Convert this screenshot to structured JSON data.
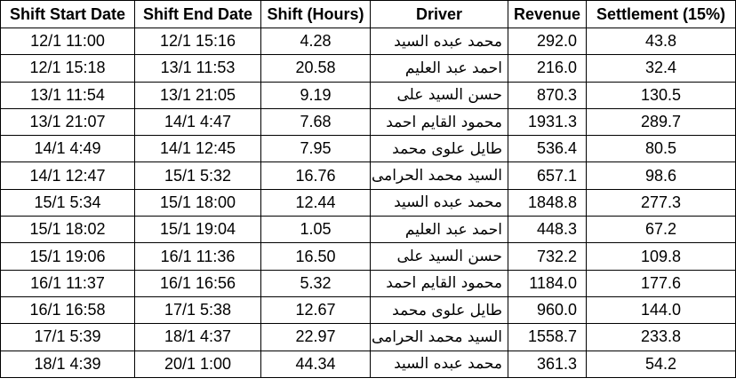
{
  "columns": [
    "Shift Start Date",
    "Shift End Date",
    "Shift (Hours)",
    "Driver",
    "Revenue",
    "Settlement (15%)"
  ],
  "rows": [
    [
      "12/1 11:00",
      "12/1 15:16",
      "4.28",
      "محمد عبده السيد",
      "292.0",
      "43.8"
    ],
    [
      "12/1 15:18",
      "13/1 11:53",
      "20.58",
      "احمد عبد العليم",
      "216.0",
      "32.4"
    ],
    [
      "13/1 11:54",
      "13/1 21:05",
      "9.19",
      "حسن السيد على",
      "870.3",
      "130.5"
    ],
    [
      "13/1 21:07",
      "14/1 4:47",
      "7.68",
      "محمود القايم احمد",
      "1931.3",
      "289.7"
    ],
    [
      "14/1 4:49",
      "14/1 12:45",
      "7.95",
      "طايل علوى محمد",
      "536.4",
      "80.5"
    ],
    [
      "14/1 12:47",
      "15/1 5:32",
      "16.76",
      "السيد محمد الحرامى",
      "657.1",
      "98.6"
    ],
    [
      "15/1 5:34",
      "15/1 18:00",
      "12.44",
      "محمد عبده السيد",
      "1848.8",
      "277.3"
    ],
    [
      "15/1 18:02",
      "15/1 19:04",
      "1.05",
      "احمد عبد العليم",
      "448.3",
      "67.2"
    ],
    [
      "15/1 19:06",
      "16/1 11:36",
      "16.50",
      "حسن السيد على",
      "732.2",
      "109.8"
    ],
    [
      "16/1 11:37",
      "16/1 16:56",
      "5.32",
      "محمود القايم احمد",
      "1184.0",
      "177.6"
    ],
    [
      "16/1 16:58",
      "17/1 5:38",
      "12.67",
      "طايل علوى محمد",
      "960.0",
      "144.0"
    ],
    [
      "17/1 5:39",
      "18/1 4:37",
      "22.97",
      "السيد محمد الحرامى",
      "1558.7",
      "233.8"
    ],
    [
      "18/1 4:39",
      "20/1 1:00",
      "44.34",
      "محمد عبده السيد",
      "361.3",
      "54.2"
    ]
  ]
}
